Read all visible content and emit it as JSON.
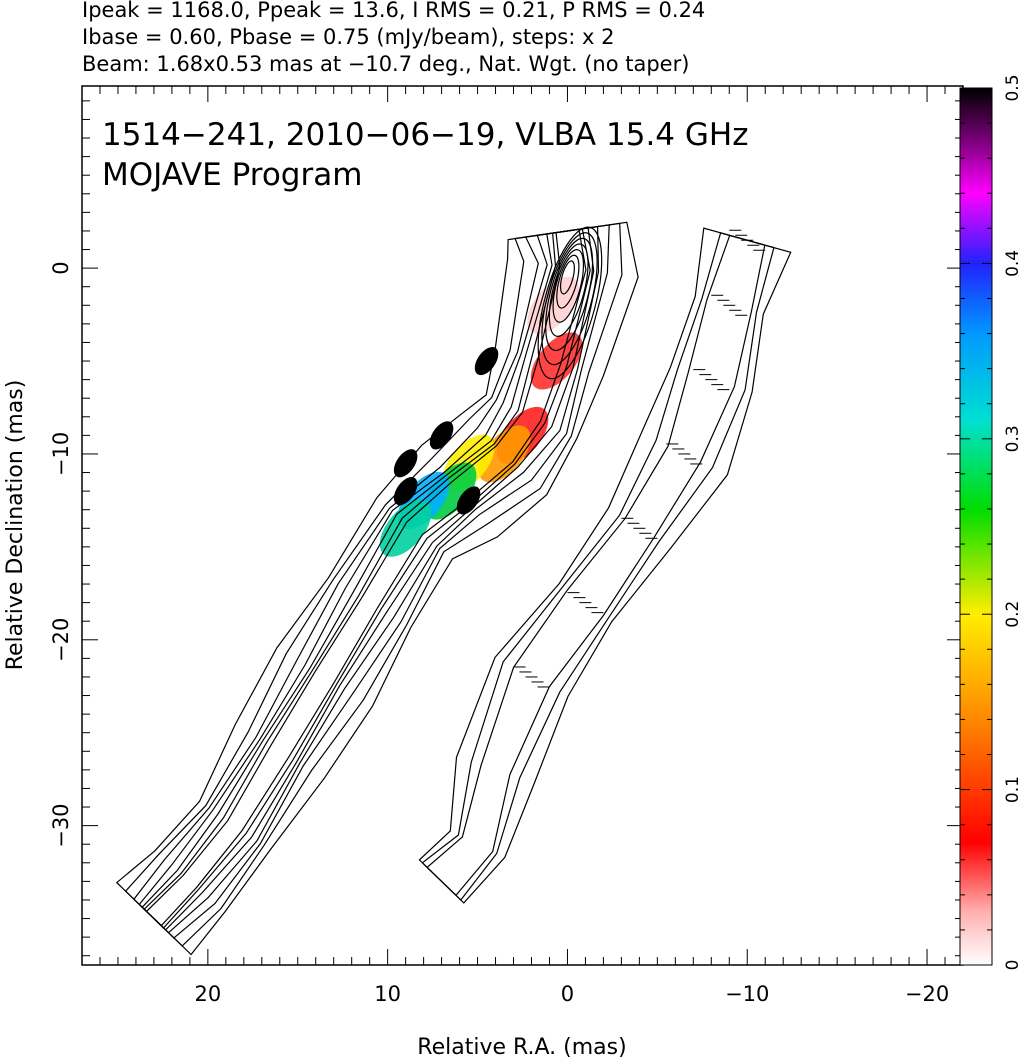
{
  "header": {
    "line1": "Ipeak = 1168.0, Ppeak = 13.6, I RMS = 0.21, P RMS = 0.24",
    "line2": "Ibase = 0.60, Pbase = 0.75 (mJy/beam), steps: x 2",
    "line3": "Beam: 1.68x0.53 mas at −10.7 deg., Nat. Wgt. (no taper)"
  },
  "chart_data": {
    "type": "contour",
    "title": "1514−241, 2010−06−19, VLBA 15.4 GHz",
    "subtitle": "MOJAVE Program",
    "xlabel": "Relative R.A. (mas)",
    "ylabel": "Relative Declination (mas)",
    "xlim": [
      27,
      -22
    ],
    "ylim": [
      -37.5,
      9.8
    ],
    "x_ticks": [
      20,
      10,
      0,
      -10,
      -20
    ],
    "x_tick_labels": [
      "20",
      "10",
      "0",
      "−10",
      "−20"
    ],
    "y_ticks": [
      0,
      -10,
      -20,
      -30
    ],
    "y_tick_labels": [
      "0",
      "−10",
      "−20",
      "−30"
    ],
    "panels": [
      {
        "name": "Total intensity contours with fractional polarization color",
        "ridge": [
          [
            0,
            2
          ],
          [
            -0.3,
            0
          ],
          [
            1,
            -5
          ],
          [
            2,
            -8
          ],
          [
            3.5,
            -10
          ],
          [
            6,
            -12
          ],
          [
            8.5,
            -14
          ],
          [
            11,
            -18
          ],
          [
            13.5,
            -22
          ],
          [
            16,
            -26
          ],
          [
            18.5,
            -30
          ],
          [
            21,
            -33
          ],
          [
            23,
            -35
          ]
        ],
        "color_regions": [
          [
            0.8,
            -2
          ],
          [
            0.6,
            -5
          ],
          [
            2.5,
            -9
          ],
          [
            3.5,
            -10
          ],
          [
            5.5,
            -10.5
          ],
          [
            6.5,
            -12
          ],
          [
            8,
            -12.5
          ],
          [
            9,
            -14
          ]
        ]
      },
      {
        "name": "Linearly polarized intensity contours with EVPA sticks",
        "ridge": [
          [
            -10,
            1.5
          ],
          [
            -9,
            -2
          ],
          [
            -8,
            -6
          ],
          [
            -6.5,
            -10
          ],
          [
            -4,
            -14
          ],
          [
            -1,
            -18
          ],
          [
            2,
            -22
          ],
          [
            4,
            -27
          ],
          [
            5,
            -31
          ],
          [
            7,
            -33
          ]
        ]
      }
    ],
    "colorbar": {
      "label_values": [
        0,
        0.1,
        0.2,
        0.3,
        0.4,
        0.5
      ],
      "tick_labels": [
        "0",
        "0.1",
        "0.2",
        "0.3",
        "0.4",
        "0.5"
      ],
      "range": [
        0,
        0.5
      ]
    },
    "beam": {
      "major": 1.68,
      "minor": 0.53,
      "pa_deg": -10.7
    }
  }
}
